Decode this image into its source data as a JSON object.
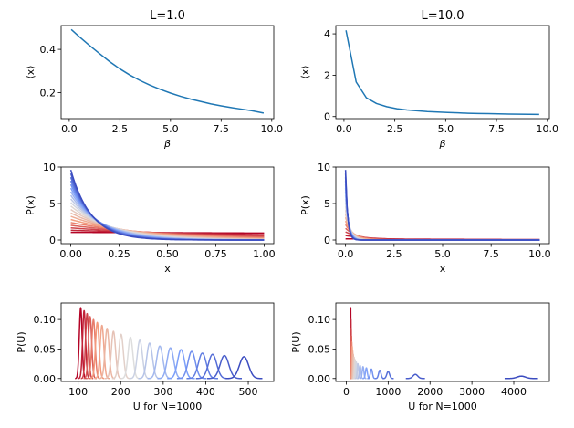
{
  "chart_data": [
    {
      "type": "line",
      "title": "L=1.0",
      "xlabel": "β",
      "ylabel": "⟨x⟩",
      "xlim": [
        -0.4,
        10.1
      ],
      "ylim": [
        0.08,
        0.51
      ],
      "xticks": [
        0.0,
        2.5,
        5.0,
        7.5,
        10.0
      ],
      "xtick_labels": [
        "0.0",
        "2.5",
        "5.0",
        "7.5",
        "10.0"
      ],
      "yticks": [
        0.2,
        0.4
      ],
      "ytick_labels": [
        "0.2",
        "0.4"
      ],
      "series": [
        {
          "color": "#1f77b4",
          "x": [
            0.1,
            0.5,
            1.0,
            1.5,
            2.0,
            2.5,
            3.0,
            3.5,
            4.0,
            4.5,
            5.0,
            5.5,
            6.0,
            6.5,
            7.0,
            7.5,
            8.0,
            8.5,
            9.0,
            9.6
          ],
          "y": [
            0.492,
            0.458,
            0.418,
            0.38,
            0.343,
            0.31,
            0.281,
            0.256,
            0.234,
            0.215,
            0.198,
            0.183,
            0.17,
            0.159,
            0.148,
            0.139,
            0.131,
            0.124,
            0.117,
            0.106
          ]
        }
      ]
    },
    {
      "type": "line",
      "title": "L=10.0",
      "xlabel": "β",
      "ylabel": "⟨x⟩",
      "xlim": [
        -0.4,
        10.1
      ],
      "ylim": [
        -0.1,
        4.4
      ],
      "xticks": [
        0.0,
        2.5,
        5.0,
        7.5,
        10.0
      ],
      "xtick_labels": [
        "0.0",
        "2.5",
        "5.0",
        "7.5",
        "10.0"
      ],
      "yticks": [
        0,
        2,
        4
      ],
      "ytick_labels": [
        "0",
        "2",
        "4"
      ],
      "series": [
        {
          "color": "#1f77b4",
          "x": [
            0.1,
            0.6,
            1.1,
            1.6,
            2.1,
            2.6,
            3.1,
            3.6,
            4.1,
            4.6,
            5.1,
            5.6,
            6.1,
            6.6,
            7.1,
            7.6,
            8.1,
            8.6,
            9.1,
            9.6
          ],
          "y": [
            4.17,
            1.67,
            0.91,
            0.63,
            0.48,
            0.38,
            0.32,
            0.28,
            0.24,
            0.22,
            0.2,
            0.18,
            0.16,
            0.15,
            0.14,
            0.13,
            0.12,
            0.116,
            0.11,
            0.104
          ]
        }
      ]
    },
    {
      "type": "line",
      "xlabel": "x",
      "ylabel": "P(x)",
      "xlim": [
        -0.05,
        1.05
      ],
      "ylim": [
        -0.5,
        10.0
      ],
      "xticks": [
        0.0,
        0.25,
        0.5,
        0.75,
        1.0
      ],
      "xtick_labels": [
        "0.00",
        "0.25",
        "0.50",
        "0.75",
        "1.00"
      ],
      "yticks": [
        0,
        5,
        10
      ],
      "ytick_labels": [
        "0",
        "5",
        "10"
      ],
      "family": {
        "kind": "truncated-exponential",
        "L": 1.0,
        "beta_min": 0.1,
        "beta_max": 9.6,
        "count": 20,
        "x_range": [
          0,
          1
        ],
        "colormap": "coolwarm-reversed"
      }
    },
    {
      "type": "line",
      "xlabel": "x",
      "ylabel": "P(x)",
      "xlim": [
        -0.5,
        10.5
      ],
      "ylim": [
        -0.5,
        10.0
      ],
      "xticks": [
        0.0,
        2.5,
        5.0,
        7.5,
        10.0
      ],
      "xtick_labels": [
        "0.0",
        "2.5",
        "5.0",
        "7.5",
        "10.0"
      ],
      "yticks": [
        0,
        5,
        10
      ],
      "ytick_labels": [
        "0",
        "5",
        "10"
      ],
      "family": {
        "kind": "truncated-exponential",
        "L": 10.0,
        "beta_min": 0.1,
        "beta_max": 9.6,
        "count": 20,
        "x_range": [
          0,
          10
        ],
        "colormap": "coolwarm-reversed"
      }
    },
    {
      "type": "line",
      "xlabel": "U for N=1000",
      "ylabel": "P(U)",
      "xlim": [
        60,
        560
      ],
      "ylim": [
        -0.005,
        0.128
      ],
      "xticks": [
        100,
        200,
        300,
        400,
        500
      ],
      "xtick_labels": [
        "100",
        "200",
        "300",
        "400",
        "500"
      ],
      "yticks": [
        0.0,
        0.05,
        0.1
      ],
      "ytick_labels": [
        "0.00",
        "0.05",
        "0.10"
      ],
      "family": {
        "kind": "gaussian-peaks",
        "N": 1000,
        "colormap": "coolwarm-reversed",
        "mean": [
          106,
          114,
          121,
          128,
          136,
          145,
          156,
          168,
          183,
          201,
          223,
          245,
          268,
          292,
          317,
          342,
          367,
          392,
          416,
          444,
          490
        ],
        "peak": [
          0.12,
          0.115,
          0.11,
          0.105,
          0.1,
          0.095,
          0.09,
          0.085,
          0.08,
          0.075,
          0.07,
          0.065,
          0.06,
          0.055,
          0.052,
          0.049,
          0.046,
          0.043,
          0.041,
          0.039,
          0.037
        ]
      }
    },
    {
      "type": "line",
      "xlabel": "U for N=1000",
      "ylabel": "P(U)",
      "xlim": [
        -250,
        4850
      ],
      "ylim": [
        -0.005,
        0.128
      ],
      "xticks": [
        0,
        1000,
        2000,
        3000,
        4000
      ],
      "xtick_labels": [
        "0",
        "1000",
        "2000",
        "3000",
        "4000"
      ],
      "yticks": [
        0.0,
        0.05,
        0.1
      ],
      "ytick_labels": [
        "0.00",
        "0.05",
        "0.10"
      ],
      "family": {
        "kind": "gaussian-peaks",
        "N": 1000,
        "colormap": "coolwarm-reversed",
        "mean": [
          105,
          110,
          116,
          123,
          130,
          140,
          152,
          166,
          184,
          208,
          238,
          276,
          330,
          400,
          480,
          600,
          800,
          1000,
          1650,
          4180
        ],
        "peak": [
          0.12,
          0.1,
          0.085,
          0.072,
          0.062,
          0.054,
          0.047,
          0.041,
          0.036,
          0.032,
          0.028,
          0.025,
          0.022,
          0.02,
          0.018,
          0.016,
          0.014,
          0.012,
          0.007,
          0.004
        ]
      }
    }
  ]
}
